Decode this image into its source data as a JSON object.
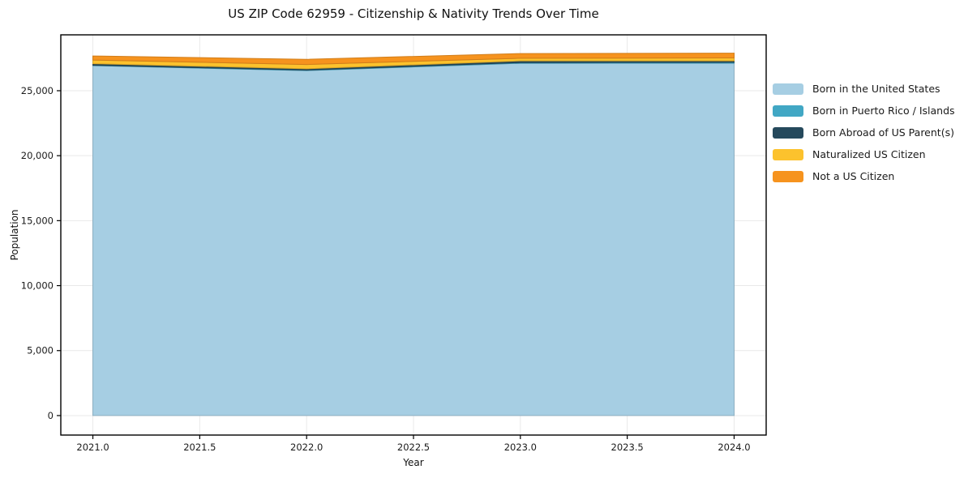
{
  "chart_data": {
    "type": "area",
    "stacked": true,
    "title": "US ZIP Code 62959 - Citizenship & Nativity Trends Over Time",
    "xlabel": "Year",
    "ylabel": "Population",
    "x": [
      2021,
      2022,
      2023,
      2024
    ],
    "series": [
      {
        "name": "Born in the United States",
        "color": "#a6cee3",
        "values": [
          26930,
          26550,
          27110,
          27120
        ]
      },
      {
        "name": "Born in Puerto Rico / Islands",
        "color": "#41a7c4",
        "values": [
          30,
          40,
          60,
          70
        ]
      },
      {
        "name": "Born Abroad of US Parent(s)",
        "color": "#25495c",
        "values": [
          120,
          100,
          130,
          110
        ]
      },
      {
        "name": "Naturalized US Citizen",
        "color": "#fcc22d",
        "values": [
          280,
          330,
          200,
          220
        ]
      },
      {
        "name": "Not a US Citizen",
        "color": "#f6931e",
        "values": [
          310,
          400,
          360,
          370
        ]
      }
    ],
    "xticks": {
      "values": [
        2021.0,
        2021.5,
        2022.0,
        2022.5,
        2023.0,
        2023.5,
        2024.0
      ],
      "labels": [
        "2021.0",
        "2021.5",
        "2022.0",
        "2022.5",
        "2023.0",
        "2023.5",
        "2024.0"
      ]
    },
    "yticks": {
      "values": [
        0,
        5000,
        10000,
        15000,
        20000,
        25000
      ],
      "labels": [
        "0",
        "5,000",
        "10,000",
        "15,000",
        "20,000",
        "25,000"
      ]
    },
    "xlim": [
      2020.85,
      2024.15
    ],
    "ylim": [
      -1500,
      29300
    ],
    "grid": true,
    "legend_position": "right-outside"
  },
  "colors": {
    "grid": "#e9e9e9",
    "spine": "#000000",
    "tick_text": "#1a1a1a",
    "background": "#ffffff"
  }
}
